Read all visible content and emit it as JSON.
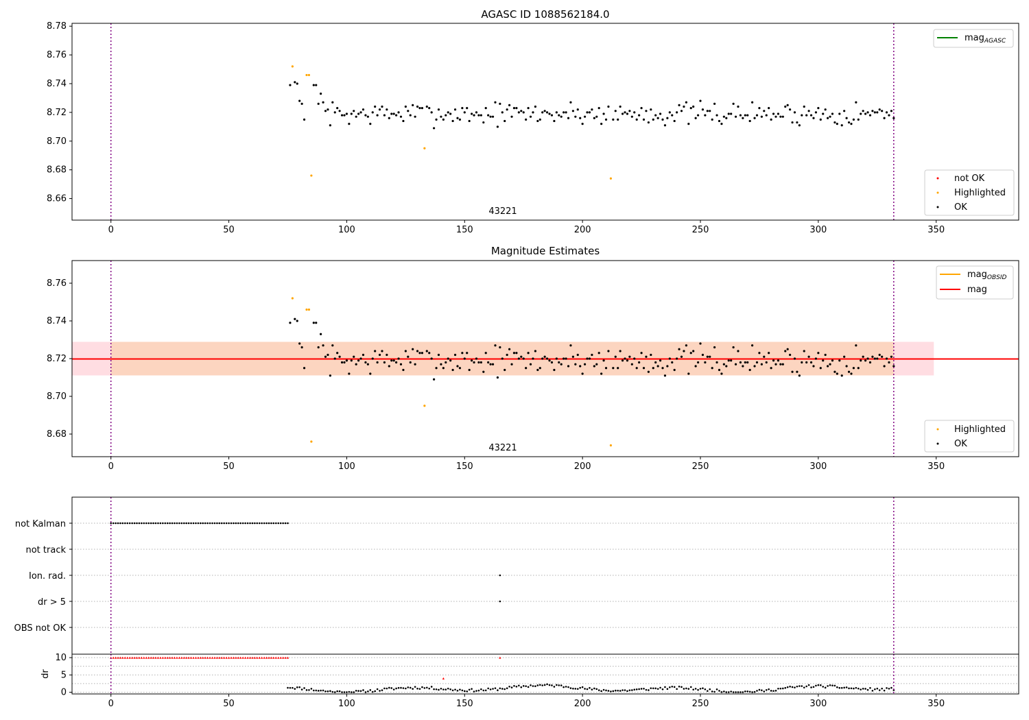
{
  "chart_data": [
    {
      "type": "scatter",
      "title": "AGASC ID 1088562184.0",
      "annotation": "43221",
      "xlim": [
        -16.5,
        385
      ],
      "ylim": [
        8.645,
        8.782
      ],
      "xticks": [
        0,
        50,
        100,
        150,
        200,
        250,
        300,
        350
      ],
      "yticks": [
        8.66,
        8.68,
        8.7,
        8.72,
        8.74,
        8.76,
        8.78
      ],
      "vlines": [
        0,
        332
      ],
      "legend_top": [
        {
          "label": "mag",
          "sub": "AGASC",
          "color": "#008000"
        }
      ],
      "legend_bottom": [
        {
          "label": "not OK",
          "color": "#ff0000"
        },
        {
          "label": "Highlighted",
          "color": "#ffa500"
        },
        {
          "label": "OK",
          "color": "#000000"
        }
      ],
      "highlighted": [
        [
          77,
          8.752
        ],
        [
          83,
          8.746
        ],
        [
          84,
          8.746
        ],
        [
          85,
          8.676
        ],
        [
          133,
          8.695
        ],
        [
          212,
          8.674
        ]
      ],
      "ok_noise": {
        "x_start": 76,
        "x_end": 332,
        "base": 8.719,
        "amp": 0.012,
        "seed": 7
      },
      "ok_early": [
        [
          76,
          8.739
        ],
        [
          78,
          8.741
        ],
        [
          79,
          8.74
        ],
        [
          80,
          8.728
        ],
        [
          81,
          8.726
        ],
        [
          82,
          8.715
        ],
        [
          86,
          8.739
        ],
        [
          87,
          8.739
        ],
        [
          88,
          8.726
        ],
        [
          89,
          8.733
        ],
        [
          90,
          8.727
        ]
      ]
    },
    {
      "type": "scatter",
      "title": "Magnitude Estimates",
      "annotation": "43221",
      "xlim": [
        -16.5,
        385
      ],
      "ylim": [
        8.668,
        8.772
      ],
      "xticks": [
        0,
        50,
        100,
        150,
        200,
        250,
        300,
        350
      ],
      "yticks": [
        8.68,
        8.7,
        8.72,
        8.74,
        8.76
      ],
      "vlines": [
        0,
        332
      ],
      "mag_line": 8.7198,
      "band_pink": [
        8.7111,
        8.7289
      ],
      "band_orange": [
        8.7111,
        8.7289
      ],
      "band_orange_x": [
        0,
        332
      ],
      "band_pink_x": [
        -16.5,
        349
      ],
      "legend_top": [
        {
          "label": "mag",
          "sub": "OBSID",
          "color": "#ffa500"
        },
        {
          "label": "mag",
          "sub": "",
          "color": "#ff0000"
        }
      ],
      "legend_bottom": [
        {
          "label": "Highlighted",
          "color": "#ffa500"
        },
        {
          "label": "OK",
          "color": "#000000"
        }
      ]
    },
    {
      "type": "scatter",
      "flags": [
        "not Kalman",
        "not track",
        "Ion. rad.",
        "dr > 5",
        "OBS not OK"
      ],
      "flag_points": {
        "not Kalman": {
          "x_range": [
            0,
            75
          ],
          "color": "#000000"
        },
        "Ion. rad.": {
          "x": [
            165
          ],
          "color": "#000000"
        },
        "dr > 5": {
          "x": [
            165
          ],
          "color": "#000000"
        }
      },
      "xlim": [
        -16.5,
        385
      ],
      "xticks": [
        0,
        50,
        100,
        150,
        200,
        250,
        300,
        350
      ],
      "vlines": [
        0,
        332
      ]
    },
    {
      "type": "scatter",
      "ylabel": "dr",
      "xlim": [
        -16.5,
        385
      ],
      "ylim": [
        -0.5,
        11
      ],
      "yticks": [
        0,
        5,
        10
      ],
      "xticks": [
        0,
        50,
        100,
        150,
        200,
        250,
        300,
        350
      ],
      "vlines": [
        0,
        332
      ],
      "red_capped": {
        "x_range": [
          0,
          75
        ],
        "y": 10
      },
      "red_extra": [
        [
          141,
          4
        ],
        [
          165,
          10
        ]
      ],
      "dr_black": {
        "x_start": 75,
        "x_end": 332,
        "seed": 11
      }
    }
  ]
}
